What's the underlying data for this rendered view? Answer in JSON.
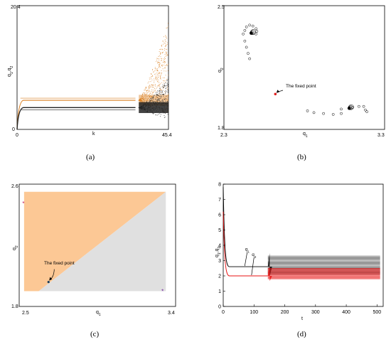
{
  "chart_data": [
    {
      "panel": "a",
      "caption": "(a)",
      "type": "scatter",
      "xlabel": "k",
      "ylabel": "q1,q2",
      "ylabel_parts": [
        "q",
        "1",
        ",q",
        "2"
      ],
      "x_ticks": [
        "0",
        "45.4"
      ],
      "y_ticks": [
        "0",
        "20.4"
      ],
      "xlim": [
        0,
        45.4
      ],
      "ylim": [
        0,
        20.4
      ],
      "bifurcation_k": 36.5,
      "series": [
        {
          "color": "#d97e1f",
          "branches": [
            4.8
          ],
          "spread_top": 17.8,
          "spread_bottom": 2.5
        },
        {
          "color": "#222222",
          "branches": [
            3.6
          ],
          "spread_top": 8.5,
          "spread_bottom": 1.7
        }
      ]
    },
    {
      "panel": "b",
      "caption": "(b)",
      "type": "scatter",
      "xlabel": "q1",
      "ylabel": "q2",
      "xlabel_parts": [
        "q",
        "1"
      ],
      "ylabel_parts": [
        "q",
        "2"
      ],
      "x_ticks": [
        "2.3",
        "3.3"
      ],
      "y_ticks": [
        "1.8",
        "2.5"
      ],
      "xlim": [
        2.3,
        3.3
      ],
      "ylim": [
        1.8,
        2.5
      ],
      "annotation": "The fixed point",
      "fixed_point": [
        2.62,
        2.0
      ],
      "attractors": [
        [
          2.47,
          2.345
        ],
        [
          3.08,
          1.92
        ]
      ],
      "orbit_points": [
        [
          2.44,
          2.38
        ],
        [
          2.46,
          2.39
        ],
        [
          2.48,
          2.385
        ],
        [
          2.5,
          2.37
        ],
        [
          2.505,
          2.355
        ],
        [
          2.5,
          2.34
        ],
        [
          2.43,
          2.36
        ],
        [
          2.42,
          2.34
        ],
        [
          2.43,
          2.3
        ],
        [
          2.44,
          2.265
        ],
        [
          2.45,
          2.23
        ],
        [
          2.46,
          2.2
        ],
        [
          2.82,
          1.905
        ],
        [
          2.86,
          1.895
        ],
        [
          2.92,
          1.89
        ],
        [
          2.98,
          1.885
        ],
        [
          3.03,
          1.89
        ],
        [
          3.1,
          1.925
        ],
        [
          3.14,
          1.93
        ],
        [
          3.17,
          1.93
        ],
        [
          3.18,
          1.91
        ],
        [
          3.19,
          1.9
        ],
        [
          3.03,
          1.915
        ]
      ]
    },
    {
      "panel": "c",
      "caption": "(c)",
      "type": "area",
      "xlabel": "q1",
      "ylabel": "q2",
      "xlabel_parts": [
        "q",
        "1"
      ],
      "ylabel_parts": [
        "q",
        "2"
      ],
      "x_ticks": [
        "2.5",
        "3.4"
      ],
      "y_ticks": [
        "1.8",
        "2.6"
      ],
      "xlim": [
        2.44,
        3.4
      ],
      "ylim": [
        1.8,
        2.6
      ],
      "region_xlim": [
        2.47,
        3.34
      ],
      "region_ylim": [
        1.9,
        2.55
      ],
      "boundary": [
        [
          2.56,
          1.9
        ],
        [
          3.34,
          2.55
        ]
      ],
      "colors": {
        "upper": "#fcc895",
        "lower": "#e0e0e0"
      },
      "annotation": "The fixed point",
      "fixed_point": [
        2.62,
        1.96
      ],
      "markers": [
        [
          2.466,
          2.475
        ],
        [
          3.32,
          1.9
        ]
      ]
    },
    {
      "panel": "d",
      "caption": "(d)",
      "type": "line",
      "xlabel": "t",
      "ylabel": "q1,q2",
      "ylabel_parts": [
        "q",
        "1",
        ",q",
        "2"
      ],
      "xlim": [
        0,
        520
      ],
      "ylim": [
        0,
        8
      ],
      "x_ticks": [
        "0",
        "100",
        "200",
        "300",
        "400",
        "500"
      ],
      "x_tick_values": [
        0,
        100,
        200,
        300,
        400,
        500
      ],
      "y_ticks": [
        "0",
        "1",
        "2",
        "3",
        "4",
        "5",
        "6",
        "7",
        "8"
      ],
      "y_tick_values": [
        0,
        1,
        2,
        3,
        4,
        5,
        6,
        7,
        8
      ],
      "t_switch": 145,
      "series": [
        {
          "label": "q1",
          "label_parts": [
            "q",
            "1"
          ],
          "color": "#000000",
          "start": 7.8,
          "plateau": 2.6,
          "band": [
            2.1,
            3.3
          ]
        },
        {
          "label": "q2",
          "label_parts": [
            "q",
            "2"
          ],
          "color": "#e81212",
          "start": 6.2,
          "plateau": 2.0,
          "band": [
            1.8,
            2.5
          ]
        }
      ],
      "label_points": [
        [
          78,
          3.65
        ],
        [
          100,
          3.3
        ]
      ]
    }
  ]
}
